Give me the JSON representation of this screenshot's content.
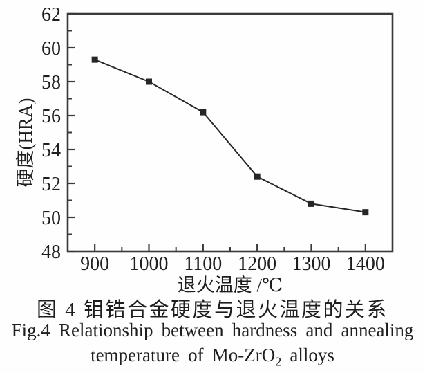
{
  "figure": {
    "caption_zh": "图 4  钼锆合金硬度与退火温度的关系",
    "caption_en_line1": "Fig.4  Relationship between hardness and annealing",
    "caption_en_line2_pre": "temperature of Mo-ZrO",
    "caption_en_line2_sub": "2",
    "caption_en_line2_post": " alloys"
  },
  "chart_data": {
    "type": "line",
    "series": [
      {
        "name": "hardness",
        "x": [
          900,
          1000,
          1100,
          1200,
          1300,
          1400
        ],
        "y": [
          59.3,
          58.0,
          56.2,
          52.4,
          50.8,
          50.3
        ]
      }
    ],
    "xlabel": "退火温度 /℃",
    "ylabel": "硬度(HRA)",
    "xlim": [
      850,
      1450
    ],
    "ylim": [
      48,
      62
    ],
    "x_major_ticks": [
      900,
      1000,
      1100,
      1200,
      1300,
      1400
    ],
    "x_minor_step": 50,
    "y_major_ticks": [
      48,
      50,
      52,
      54,
      56,
      58,
      60,
      62
    ],
    "y_minor_step": 1,
    "grid": false,
    "legend": "none",
    "marker": "square",
    "marker_size": 9,
    "line_color": "#262626",
    "axis_color": "#3a3a3a",
    "text_color": "#1e1e1e",
    "background": "#fefefe"
  }
}
